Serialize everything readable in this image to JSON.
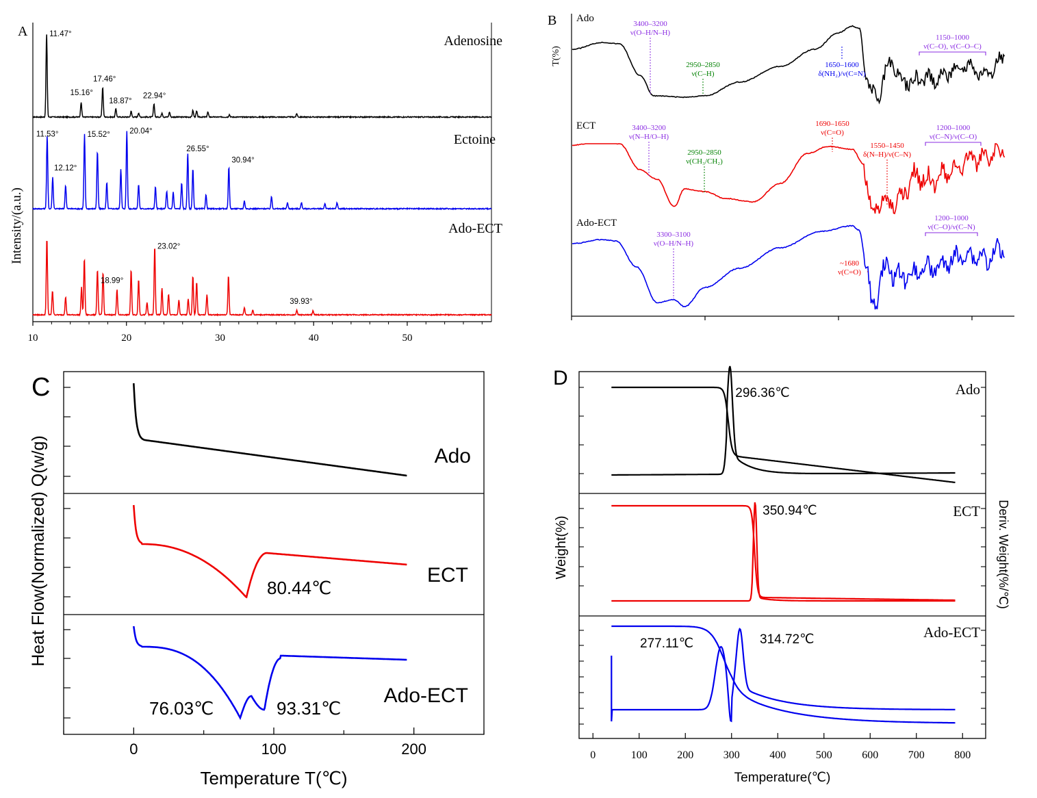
{
  "chart_data": [
    {
      "panel": "A",
      "type": "line",
      "xlabel": "",
      "ylabel": "Intensity/(a.u.)",
      "xlim": [
        10,
        59
      ],
      "xticks": [
        10,
        20,
        30,
        40,
        50
      ],
      "series": [
        {
          "name": "Adenosine",
          "color": "#000000",
          "peaks": [
            {
              "x": 11.47,
              "h": 1.0,
              "label": "11.47°"
            },
            {
              "x": 15.16,
              "h": 0.18,
              "label": "15.16°"
            },
            {
              "x": 17.46,
              "h": 0.36,
              "label": "17.46°"
            },
            {
              "x": 18.87,
              "h": 0.1,
              "label": "18.87°"
            },
            {
              "x": 20.5,
              "h": 0.07,
              "label": ""
            },
            {
              "x": 21.3,
              "h": 0.05,
              "label": ""
            },
            {
              "x": 22.94,
              "h": 0.16,
              "label": "22.94°"
            },
            {
              "x": 23.8,
              "h": 0.05,
              "label": ""
            },
            {
              "x": 24.6,
              "h": 0.06,
              "label": ""
            },
            {
              "x": 27.1,
              "h": 0.08,
              "label": ""
            },
            {
              "x": 27.5,
              "h": 0.07,
              "label": ""
            },
            {
              "x": 28.7,
              "h": 0.06,
              "label": ""
            },
            {
              "x": 31.0,
              "h": 0.03,
              "label": ""
            },
            {
              "x": 38.2,
              "h": 0.04,
              "label": ""
            }
          ]
        },
        {
          "name": "Ectoine",
          "color": "#0000ee",
          "peaks": [
            {
              "x": 11.53,
              "h": 0.84,
              "label": "11.53°"
            },
            {
              "x": 12.12,
              "h": 0.36,
              "label": "12.12°"
            },
            {
              "x": 13.5,
              "h": 0.27,
              "label": ""
            },
            {
              "x": 15.52,
              "h": 0.85,
              "label": "15.52°"
            },
            {
              "x": 16.9,
              "h": 0.66,
              "label": ""
            },
            {
              "x": 17.9,
              "h": 0.3,
              "label": ""
            },
            {
              "x": 19.4,
              "h": 0.45,
              "label": ""
            },
            {
              "x": 20.04,
              "h": 0.89,
              "label": "20.04°"
            },
            {
              "x": 21.3,
              "h": 0.28,
              "label": ""
            },
            {
              "x": 23.1,
              "h": 0.25,
              "label": ""
            },
            {
              "x": 24.3,
              "h": 0.2,
              "label": ""
            },
            {
              "x": 25.0,
              "h": 0.19,
              "label": ""
            },
            {
              "x": 25.9,
              "h": 0.3,
              "label": ""
            },
            {
              "x": 26.55,
              "h": 0.64,
              "label": "26.55°"
            },
            {
              "x": 27.1,
              "h": 0.46,
              "label": ""
            },
            {
              "x": 28.5,
              "h": 0.16,
              "label": ""
            },
            {
              "x": 30.94,
              "h": 0.48,
              "label": "30.94°"
            },
            {
              "x": 32.6,
              "h": 0.09,
              "label": ""
            },
            {
              "x": 35.5,
              "h": 0.14,
              "label": ""
            },
            {
              "x": 37.2,
              "h": 0.07,
              "label": ""
            },
            {
              "x": 38.7,
              "h": 0.07,
              "label": ""
            },
            {
              "x": 41.2,
              "h": 0.06,
              "label": ""
            },
            {
              "x": 42.5,
              "h": 0.07,
              "label": ""
            }
          ]
        },
        {
          "name": "Ado-ECT",
          "color": "#ee0000",
          "peaks": [
            {
              "x": 11.5,
              "h": 0.95,
              "label": ""
            },
            {
              "x": 12.1,
              "h": 0.3,
              "label": ""
            },
            {
              "x": 13.5,
              "h": 0.22,
              "label": ""
            },
            {
              "x": 15.2,
              "h": 0.34,
              "label": ""
            },
            {
              "x": 15.5,
              "h": 0.7,
              "label": ""
            },
            {
              "x": 16.9,
              "h": 0.56,
              "label": ""
            },
            {
              "x": 17.5,
              "h": 0.53,
              "label": ""
            },
            {
              "x": 18.99,
              "h": 0.31,
              "label": "18.99°"
            },
            {
              "x": 20.5,
              "h": 0.56,
              "label": ""
            },
            {
              "x": 21.3,
              "h": 0.44,
              "label": ""
            },
            {
              "x": 22.2,
              "h": 0.15,
              "label": ""
            },
            {
              "x": 23.02,
              "h": 0.85,
              "label": "23.02°"
            },
            {
              "x": 23.8,
              "h": 0.33,
              "label": ""
            },
            {
              "x": 24.5,
              "h": 0.26,
              "label": ""
            },
            {
              "x": 25.6,
              "h": 0.18,
              "label": ""
            },
            {
              "x": 26.6,
              "h": 0.2,
              "label": ""
            },
            {
              "x": 27.1,
              "h": 0.48,
              "label": ""
            },
            {
              "x": 27.5,
              "h": 0.41,
              "label": ""
            },
            {
              "x": 28.6,
              "h": 0.25,
              "label": ""
            },
            {
              "x": 30.9,
              "h": 0.49,
              "label": ""
            },
            {
              "x": 32.6,
              "h": 0.09,
              "label": ""
            },
            {
              "x": 33.5,
              "h": 0.06,
              "label": ""
            },
            {
              "x": 38.2,
              "h": 0.06,
              "label": ""
            },
            {
              "x": 39.93,
              "h": 0.05,
              "label": "39.93°"
            }
          ]
        }
      ]
    },
    {
      "panel": "B",
      "type": "line",
      "ylabel": "T(%)",
      "series": [
        {
          "name": "Ado",
          "color": "#000000",
          "annotations": [
            {
              "text": [
                "3400–3200",
                "ν(O–H/N–H)"
              ],
              "color": "#8a2be2",
              "style": "line"
            },
            {
              "text": [
                "2950–2850",
                "ν(C–H)"
              ],
              "color": "#008000",
              "style": "line"
            },
            {
              "text": [
                "1650–1600",
                "δ(NH₂)/ν(C=N)"
              ],
              "color": "#0000ee",
              "style": "line"
            },
            {
              "text": [
                "1150–1000",
                "ν(C–O), ν(C–O–C)"
              ],
              "color": "#8a2be2",
              "style": "bracket"
            }
          ]
        },
        {
          "name": "ECT",
          "color": "#ee0000",
          "annotations": [
            {
              "text": [
                "3400–3200",
                "ν(N–H/O–H)"
              ],
              "color": "#8a2be2",
              "style": "line"
            },
            {
              "text": [
                "2950–2850",
                "ν(CH₃/CH₂)"
              ],
              "color": "#008000",
              "style": "line"
            },
            {
              "text": [
                "1690–1650",
                "ν(C=O)"
              ],
              "color": "#ee0000",
              "style": "line"
            },
            {
              "text": [
                "1550–1450",
                "δ(N–H)/ν(C–N)"
              ],
              "color": "#ee0000",
              "style": "line"
            },
            {
              "text": [
                "1200–1000",
                "ν(C–N)/ν(C–O)"
              ],
              "color": "#8a2be2",
              "style": "bracket"
            }
          ]
        },
        {
          "name": "Ado-ECT",
          "color": "#0000ee",
          "annotations": [
            {
              "text": [
                "3300–3100",
                "ν(O–H/N–H)"
              ],
              "color": "#8a2be2",
              "style": "line"
            },
            {
              "text": [
                "~1680",
                "ν(C=O)"
              ],
              "color": "#ee0000",
              "style": "side"
            },
            {
              "text": [
                "1200–1000",
                "ν(C–O)/ν(C–N)"
              ],
              "color": "#8a2be2",
              "style": "bracket"
            }
          ]
        }
      ]
    },
    {
      "panel": "C",
      "type": "line",
      "xlabel": "Temperature T(℃)",
      "ylabel": "Heat Flow(Normalized) Q(w/g)",
      "xlim": [
        -50,
        250
      ],
      "xticks": [
        0,
        100,
        200
      ],
      "series": [
        {
          "name": "Ado",
          "color": "#000000",
          "dips": []
        },
        {
          "name": "ECT",
          "color": "#ee0000",
          "dips": [
            {
              "x": 80.44,
              "label": "80.44℃"
            }
          ]
        },
        {
          "name": "Ado-ECT",
          "color": "#0000ee",
          "dips": [
            {
              "x": 76.03,
              "label": "76.03℃"
            },
            {
              "x": 93.31,
              "label": "93.31℃"
            }
          ]
        }
      ]
    },
    {
      "panel": "D",
      "type": "line",
      "xlabel": "Temperature(℃)",
      "ylabel": "Weight(%)",
      "ylabel2": "Deriv. Weight(%/℃)",
      "xlim": [
        -30,
        850
      ],
      "xticks": [
        0,
        100,
        200,
        300,
        400,
        500,
        600,
        700,
        800
      ],
      "series": [
        {
          "name": "Ado",
          "color": "#000000",
          "peaks": [
            {
              "x": 296.36,
              "label": "296.36℃"
            }
          ]
        },
        {
          "name": "ECT",
          "color": "#ee0000",
          "peaks": [
            {
              "x": 350.94,
              "label": "350.94℃"
            }
          ]
        },
        {
          "name": "Ado-ECT",
          "color": "#0000ee",
          "peaks": [
            {
              "x": 277.11,
              "label": "277.11℃"
            },
            {
              "x": 314.72,
              "label": "314.72℃"
            }
          ]
        }
      ]
    }
  ],
  "panels": {
    "A": {
      "letter": "A"
    },
    "B": {
      "letter": "B"
    },
    "C": {
      "letter": "C"
    },
    "D": {
      "letter": "D"
    }
  }
}
